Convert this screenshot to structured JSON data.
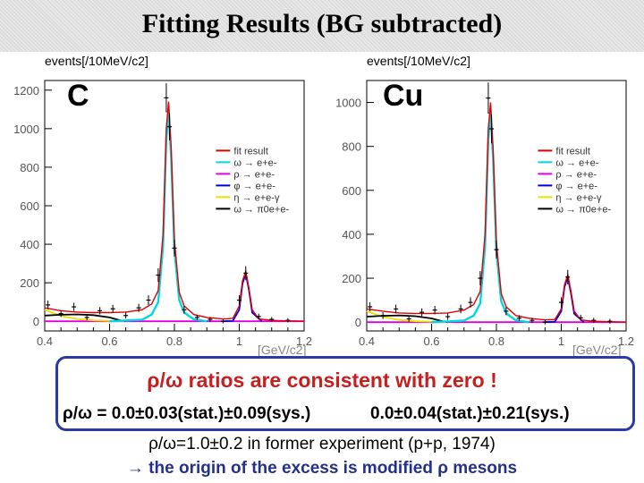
{
  "title": "Fitting Results (BG subtracted)",
  "chart_data": [
    {
      "type": "line",
      "panel_label": "C",
      "ylabel": "events[/10MeV/c2]",
      "xlabel": "[GeV/c2]",
      "xlim": [
        0.4,
        1.2
      ],
      "ylim": [
        -50,
        1250
      ],
      "xticks": [
        "0.4",
        "0.6",
        "0.8",
        "1",
        "1.2"
      ],
      "yticks": [
        "0",
        "200",
        "400",
        "600",
        "800",
        "1000",
        "1200"
      ],
      "legend": [
        "fit result",
        "ω → e+e-",
        "ρ → e+e-",
        "φ → e+e-",
        "η → e+e-γ",
        "ω → π0e+e-"
      ],
      "legend_colors": [
        "#e00000",
        "#00d8e0",
        "#e000e0",
        "#0000e0",
        "#e8e000",
        "#000000"
      ],
      "series": [
        {
          "name": "fit result",
          "x": [
            0.4,
            0.45,
            0.5,
            0.55,
            0.6,
            0.65,
            0.7,
            0.73,
            0.75,
            0.765,
            0.775,
            0.782,
            0.79,
            0.8,
            0.815,
            0.83,
            0.86,
            0.9,
            0.95,
            0.98,
            1.0,
            1.01,
            1.02,
            1.03,
            1.04,
            1.06,
            1.1,
            1.15,
            1.2
          ],
          "y": [
            70,
            55,
            48,
            45,
            45,
            48,
            60,
            90,
            160,
            450,
            1000,
            1140,
            900,
            420,
            150,
            80,
            35,
            20,
            12,
            15,
            80,
            210,
            260,
            170,
            60,
            12,
            5,
            2,
            0
          ]
        },
        {
          "name": "ω → e+e-",
          "x": [
            0.6,
            0.7,
            0.73,
            0.75,
            0.765,
            0.775,
            0.782,
            0.79,
            0.8,
            0.815,
            0.83,
            0.86,
            0.9
          ],
          "y": [
            0,
            8,
            35,
            100,
            390,
            940,
            1090,
            850,
            370,
            110,
            45,
            10,
            0
          ]
        },
        {
          "name": "ρ → e+e-",
          "x": [
            0.4,
            0.5,
            0.6,
            0.7,
            0.78,
            0.85,
            0.95,
            1.05,
            1.2
          ],
          "y": [
            0,
            0,
            0,
            0,
            0,
            0,
            0,
            0,
            0
          ]
        },
        {
          "name": "φ → e+e-",
          "x": [
            0.95,
            0.98,
            1.0,
            1.01,
            1.02,
            1.03,
            1.04,
            1.07
          ],
          "y": [
            0,
            2,
            60,
            195,
            250,
            160,
            45,
            0
          ]
        },
        {
          "name": "η → e+e-γ",
          "x": [
            0.4,
            0.45,
            0.5,
            0.55,
            0.6,
            0.65
          ],
          "y": [
            60,
            28,
            12,
            5,
            2,
            0
          ]
        },
        {
          "name": "ω → π0e+e-",
          "x": [
            0.4,
            0.45,
            0.5,
            0.55,
            0.6,
            0.63,
            0.65
          ],
          "y": [
            30,
            34,
            36,
            32,
            20,
            6,
            0
          ]
        }
      ],
      "data_points": {
        "x": [
          0.41,
          0.45,
          0.49,
          0.53,
          0.57,
          0.61,
          0.65,
          0.69,
          0.72,
          0.75,
          0.775,
          0.785,
          0.8,
          0.83,
          0.87,
          0.91,
          0.95,
          1.0,
          1.02,
          1.06,
          1.1,
          1.15
        ],
        "y": [
          85,
          40,
          75,
          20,
          55,
          65,
          30,
          70,
          110,
          240,
          1160,
          1010,
          380,
          60,
          20,
          10,
          0,
          110,
          250,
          25,
          10,
          5
        ]
      }
    },
    {
      "type": "line",
      "panel_label": "Cu",
      "ylabel": "events[/10MeV/c2]",
      "xlabel": "[GeV/c2]",
      "xlim": [
        0.4,
        1.2
      ],
      "ylim": [
        -40,
        1100
      ],
      "xticks": [
        "0.4",
        "0.6",
        "0.8",
        "1",
        "1.2"
      ],
      "yticks": [
        "0",
        "200",
        "400",
        "600",
        "800",
        "1000"
      ],
      "legend": [
        "fit result",
        "ω → e+e-",
        "ρ → e+e-",
        "φ → e+e-",
        "η → e+e-γ",
        "ω → π0e+e-"
      ],
      "legend_colors": [
        "#e00000",
        "#00d8e0",
        "#e000e0",
        "#0000e0",
        "#e8e000",
        "#000000"
      ],
      "series": [
        {
          "name": "fit result",
          "x": [
            0.4,
            0.45,
            0.5,
            0.55,
            0.6,
            0.65,
            0.7,
            0.73,
            0.75,
            0.765,
            0.775,
            0.782,
            0.79,
            0.8,
            0.815,
            0.83,
            0.86,
            0.9,
            0.95,
            0.98,
            1.0,
            1.01,
            1.02,
            1.03,
            1.04,
            1.06,
            1.1,
            1.15,
            1.2
          ],
          "y": [
            60,
            50,
            42,
            40,
            40,
            42,
            55,
            80,
            140,
            400,
            880,
            1000,
            780,
            360,
            130,
            70,
            30,
            18,
            10,
            12,
            60,
            170,
            215,
            140,
            50,
            10,
            4,
            2,
            0
          ]
        },
        {
          "name": "ω → e+e-",
          "x": [
            0.6,
            0.7,
            0.73,
            0.75,
            0.765,
            0.775,
            0.782,
            0.79,
            0.8,
            0.815,
            0.83,
            0.86,
            0.9
          ],
          "y": [
            0,
            7,
            30,
            85,
            345,
            830,
            955,
            740,
            320,
            95,
            40,
            8,
            0
          ]
        },
        {
          "name": "ρ → e+e-",
          "x": [
            0.4,
            0.5,
            0.6,
            0.7,
            0.78,
            0.85,
            0.95,
            1.05,
            1.2
          ],
          "y": [
            0,
            0,
            0,
            0,
            0,
            0,
            0,
            0,
            0
          ]
        },
        {
          "name": "φ → e+e-",
          "x": [
            0.95,
            0.98,
            1.0,
            1.01,
            1.02,
            1.03,
            1.04,
            1.07
          ],
          "y": [
            0,
            2,
            50,
            160,
            205,
            130,
            38,
            0
          ]
        },
        {
          "name": "η → e+e-γ",
          "x": [
            0.4,
            0.45,
            0.5,
            0.55,
            0.6,
            0.65
          ],
          "y": [
            50,
            24,
            10,
            4,
            2,
            0
          ]
        },
        {
          "name": "ω → π0e+e-",
          "x": [
            0.4,
            0.45,
            0.5,
            0.55,
            0.6,
            0.63,
            0.65
          ],
          "y": [
            25,
            29,
            31,
            27,
            17,
            5,
            0
          ]
        }
      ],
      "data_points": {
        "x": [
          0.41,
          0.45,
          0.49,
          0.53,
          0.57,
          0.61,
          0.65,
          0.69,
          0.72,
          0.75,
          0.775,
          0.785,
          0.8,
          0.83,
          0.87,
          0.91,
          0.95,
          1.0,
          1.02,
          1.06,
          1.1,
          1.15
        ],
        "y": [
          70,
          30,
          60,
          15,
          45,
          55,
          25,
          60,
          90,
          200,
          1020,
          880,
          330,
          50,
          18,
          8,
          0,
          90,
          205,
          20,
          8,
          4
        ]
      }
    }
  ],
  "summary": {
    "headline": "ρ/ω ratios are consistent with zero !",
    "c_result": "ρ/ω = 0.0±0.03(stat.)±0.09(sys.)",
    "cu_result": "0.0±0.04(stat.)±0.21(sys.)",
    "former": "ρ/ω=1.0±0.2 in former experiment (p+p, 1974)",
    "conclusion": "→ the origin of the excess is modified ρ mesons"
  }
}
